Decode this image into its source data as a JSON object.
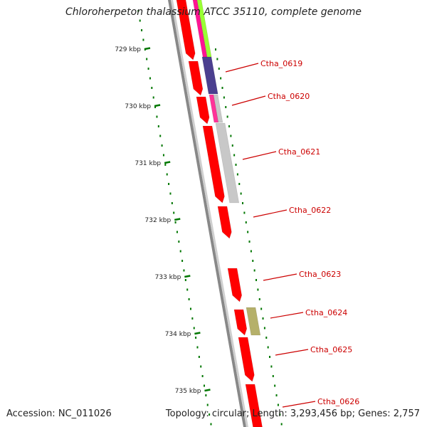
{
  "title": "Chloroherpeton thalassium ATCC 35110, complete genome",
  "footer": {
    "accession": "Accession: NC_011026",
    "summary": "Topology: circular; Length: 3,293,456 bp; Genes: 2,757"
  },
  "colors": {
    "cds": "#ff0000",
    "label": "#cc0000",
    "tick": "#007700",
    "backbone": "#888888"
  },
  "ticks": [
    "729 kbp",
    "730 kbp",
    "731 kbp",
    "732 kbp",
    "733 kbp",
    "734 kbp",
    "735 kbp"
  ],
  "genes": [
    "Ctha_0619",
    "Ctha_0620",
    "Ctha_0621",
    "Ctha_0622",
    "Ctha_0623",
    "Ctha_0624",
    "Ctha_0625",
    "Ctha_0626"
  ],
  "feature_colors": [
    "#ff1493",
    "#99ff33",
    "#4b3f8f",
    "#ff3399",
    "#c8c8c8",
    "#b5b06a"
  ]
}
